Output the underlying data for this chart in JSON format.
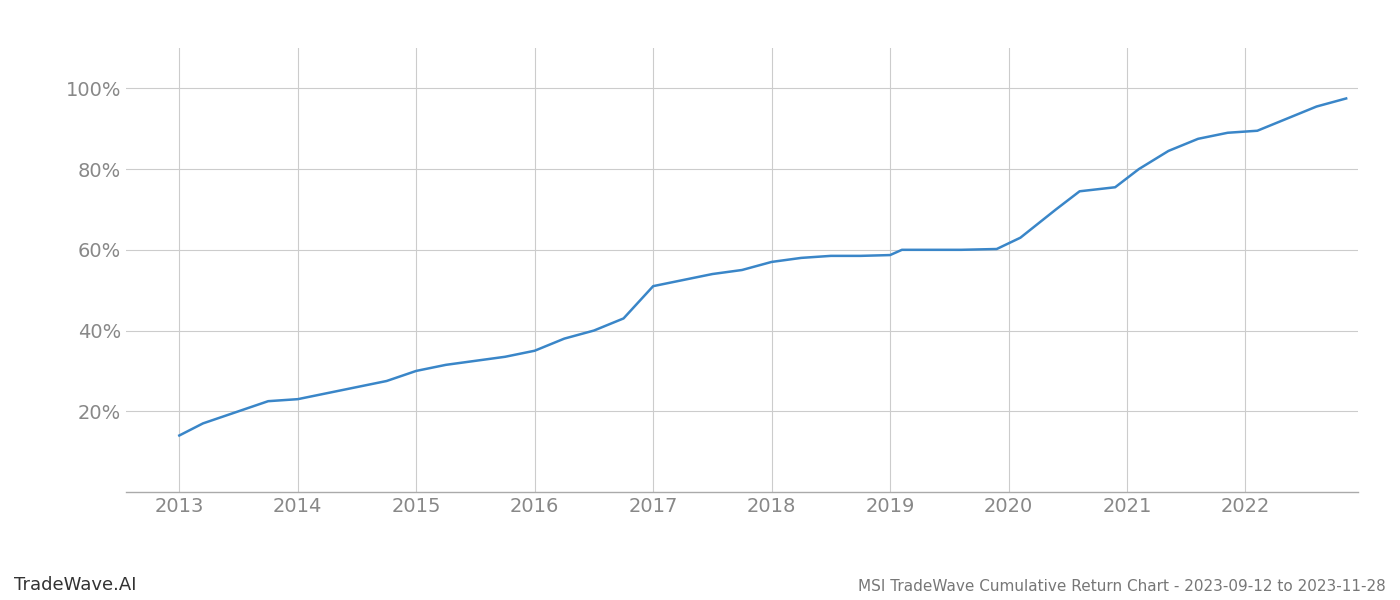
{
  "title": "MSI TradeWave Cumulative Return Chart - 2023-09-12 to 2023-11-28",
  "watermark": "TradeWave.AI",
  "line_color": "#3a86c8",
  "line_width": 1.8,
  "background_color": "#ffffff",
  "grid_color": "#cccccc",
  "x_years": [
    2013,
    2014,
    2015,
    2016,
    2017,
    2018,
    2019,
    2020,
    2021,
    2022
  ],
  "x_data": [
    2013.0,
    2013.2,
    2013.5,
    2013.75,
    2014.0,
    2014.25,
    2014.5,
    2014.75,
    2015.0,
    2015.25,
    2015.5,
    2015.75,
    2016.0,
    2016.25,
    2016.5,
    2016.75,
    2017.0,
    2017.25,
    2017.5,
    2017.75,
    2018.0,
    2018.25,
    2018.5,
    2018.75,
    2019.0,
    2019.1,
    2019.3,
    2019.6,
    2019.9,
    2020.1,
    2020.4,
    2020.6,
    2020.9,
    2021.1,
    2021.35,
    2021.6,
    2021.85,
    2022.1,
    2022.35,
    2022.6,
    2022.85
  ],
  "y_data": [
    14.0,
    17.0,
    20.0,
    22.5,
    23.0,
    24.5,
    26.0,
    27.5,
    30.0,
    31.5,
    32.5,
    33.5,
    35.0,
    38.0,
    40.0,
    43.0,
    51.0,
    52.5,
    54.0,
    55.0,
    57.0,
    58.0,
    58.5,
    58.5,
    58.7,
    60.0,
    60.0,
    60.0,
    60.2,
    63.0,
    70.0,
    74.5,
    75.5,
    80.0,
    84.5,
    87.5,
    89.0,
    89.5,
    92.5,
    95.5,
    97.5
  ],
  "ylim": [
    0,
    110
  ],
  "yticks": [
    20,
    40,
    60,
    80,
    100
  ],
  "ytick_labels": [
    "20%",
    "40%",
    "60%",
    "80%",
    "100%"
  ],
  "xlim": [
    2012.55,
    2022.95
  ],
  "title_color": "#777777",
  "tick_color": "#888888",
  "tick_fontsize": 14,
  "title_fontsize": 11,
  "watermark_fontsize": 13
}
